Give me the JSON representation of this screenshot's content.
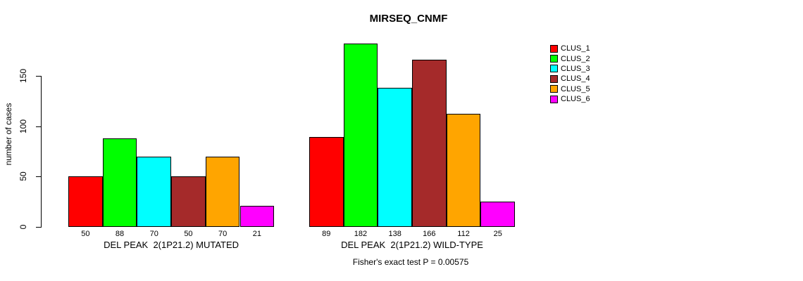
{
  "title": "MIRSEQ_CNMF",
  "chart_data": {
    "type": "bar",
    "title": "MIRSEQ_CNMF",
    "ylabel": "number of cases",
    "yticks": [
      0,
      50,
      100,
      150
    ],
    "ylim": [
      0,
      185
    ],
    "grid": false,
    "legend_position": "right",
    "annotation": "Fisher's exact test P = 0.00575",
    "clusters": [
      {
        "name": "CLUS_1",
        "color": "#FF0000"
      },
      {
        "name": "CLUS_2",
        "color": "#00FF00"
      },
      {
        "name": "CLUS_3",
        "color": "#00FFFF"
      },
      {
        "name": "CLUS_4",
        "color": "#A52A2A"
      },
      {
        "name": "CLUS_5",
        "color": "#FFA500"
      },
      {
        "name": "CLUS_6",
        "color": "#FF00FF"
      }
    ],
    "groups": [
      {
        "label": "DEL PEAK  2(1P21.2) MUTATED",
        "values": [
          50,
          88,
          70,
          50,
          70,
          21
        ]
      },
      {
        "label": "DEL PEAK  2(1P21.2) WILD-TYPE",
        "values": [
          89,
          182,
          138,
          166,
          112,
          25
        ]
      }
    ]
  },
  "legend": {
    "items": [
      "CLUS_1",
      "CLUS_2",
      "CLUS_3",
      "CLUS_4",
      "CLUS_5",
      "CLUS_6"
    ]
  }
}
